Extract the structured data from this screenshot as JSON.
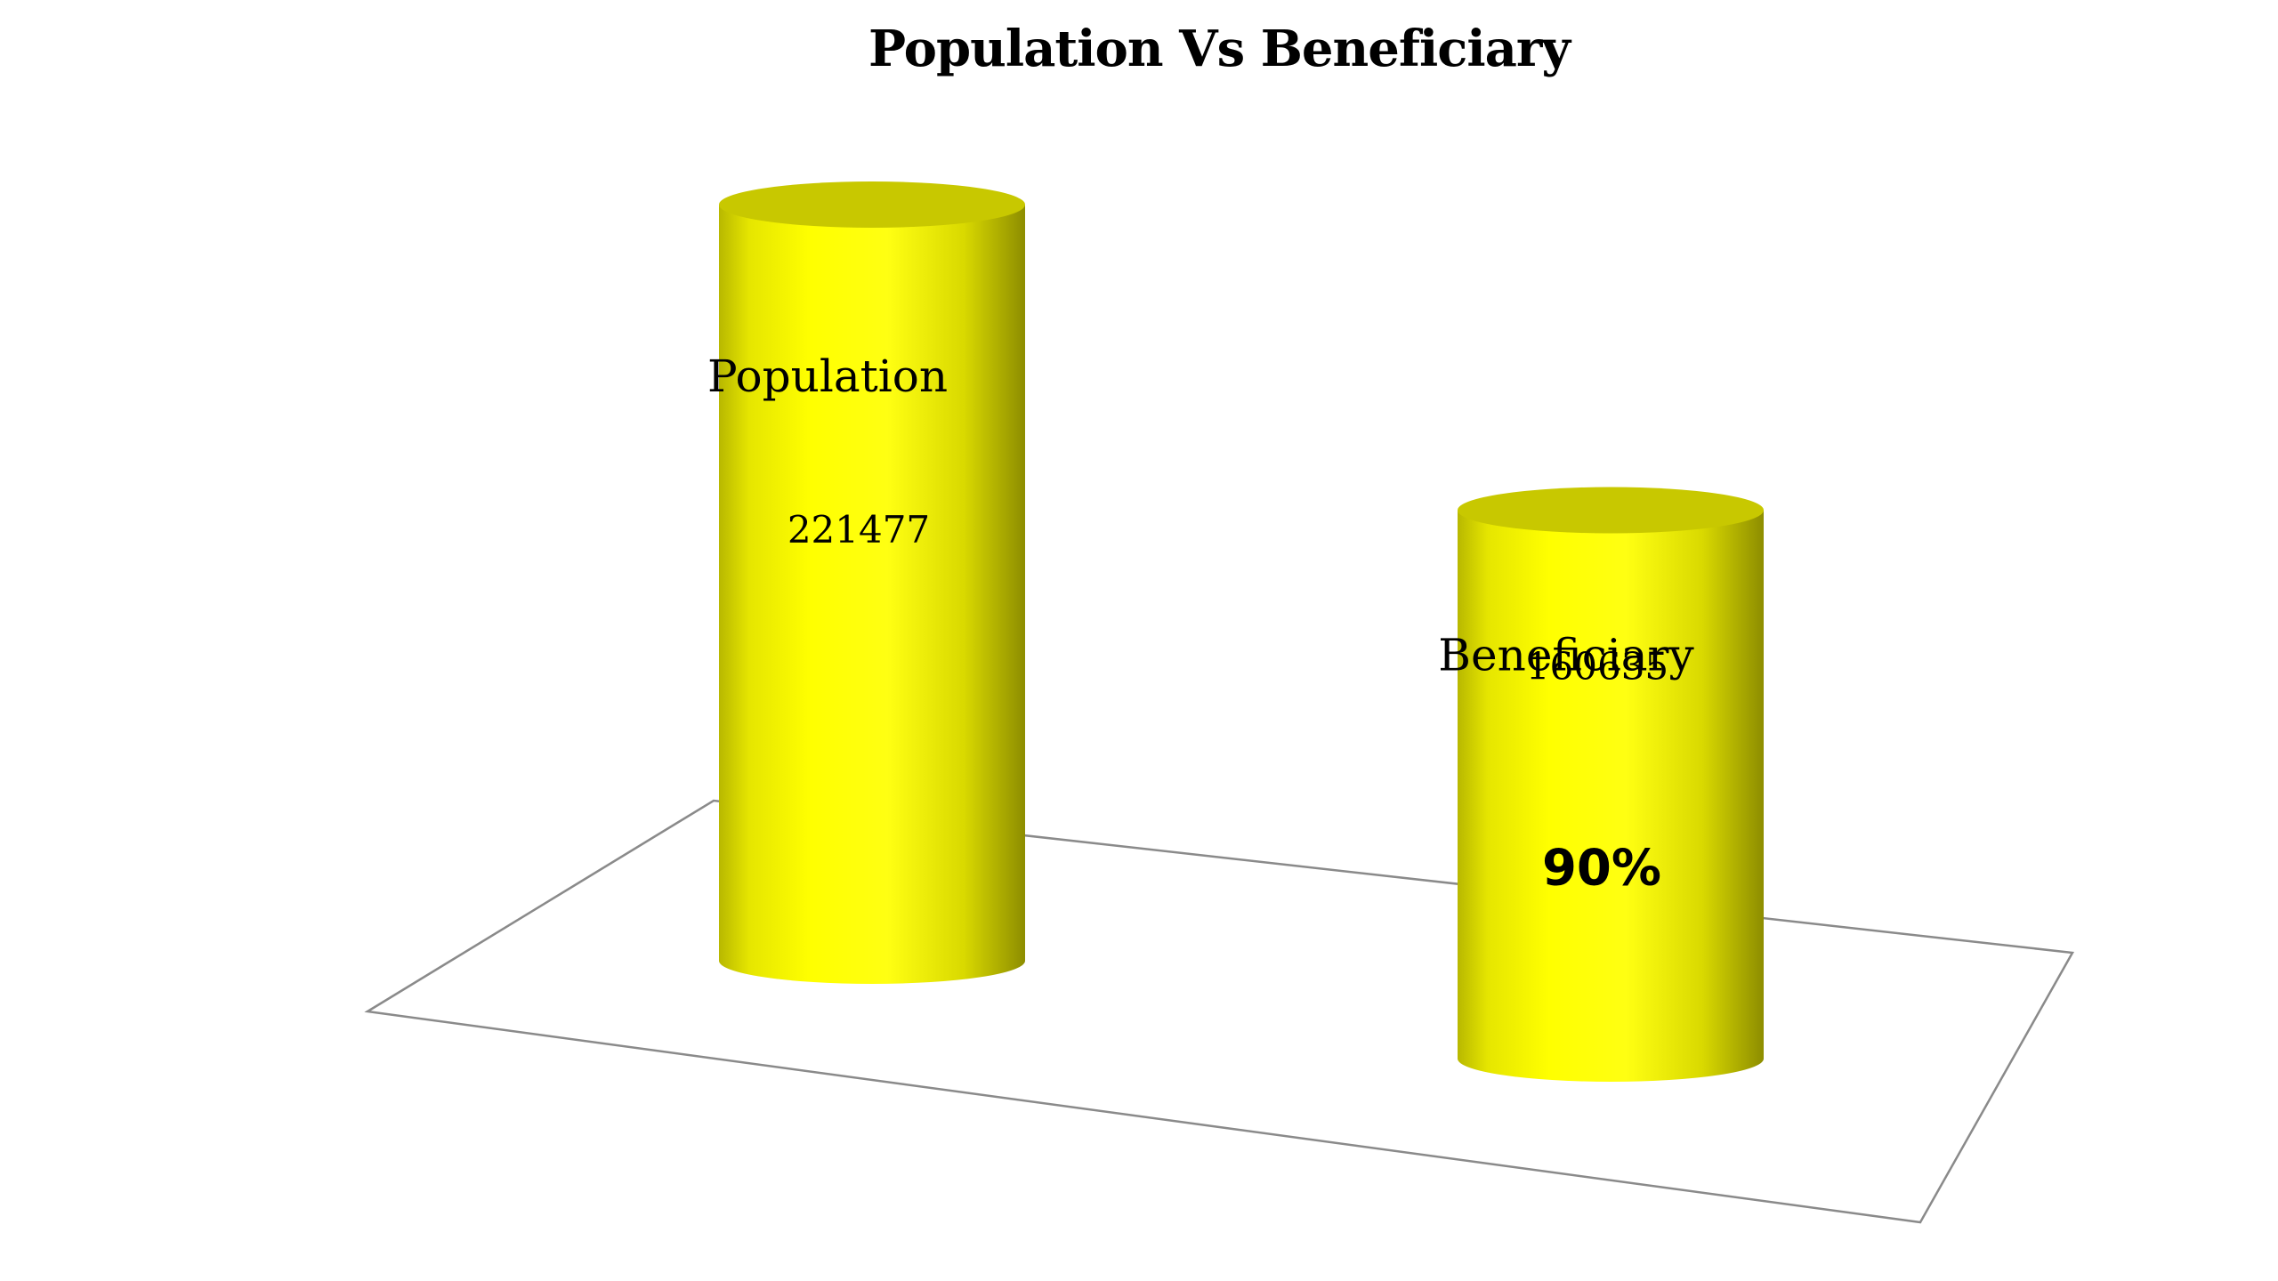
{
  "chart_data": {
    "type": "bar",
    "title": "Population Vs Beneficiary",
    "categories": [
      "Population",
      "Beneficiary"
    ],
    "values": [
      221477,
      160635
    ],
    "value_labels": [
      "221477",
      "160635"
    ],
    "annotations": [
      "",
      "90%"
    ],
    "xlabel": "",
    "ylabel": "",
    "grid": false,
    "legend": "none",
    "style": "3d-cylinder"
  },
  "colors": {
    "bar_fill": "#f5f500",
    "bar_top": "#c8c800",
    "floor_line": "#8a8a8a"
  }
}
